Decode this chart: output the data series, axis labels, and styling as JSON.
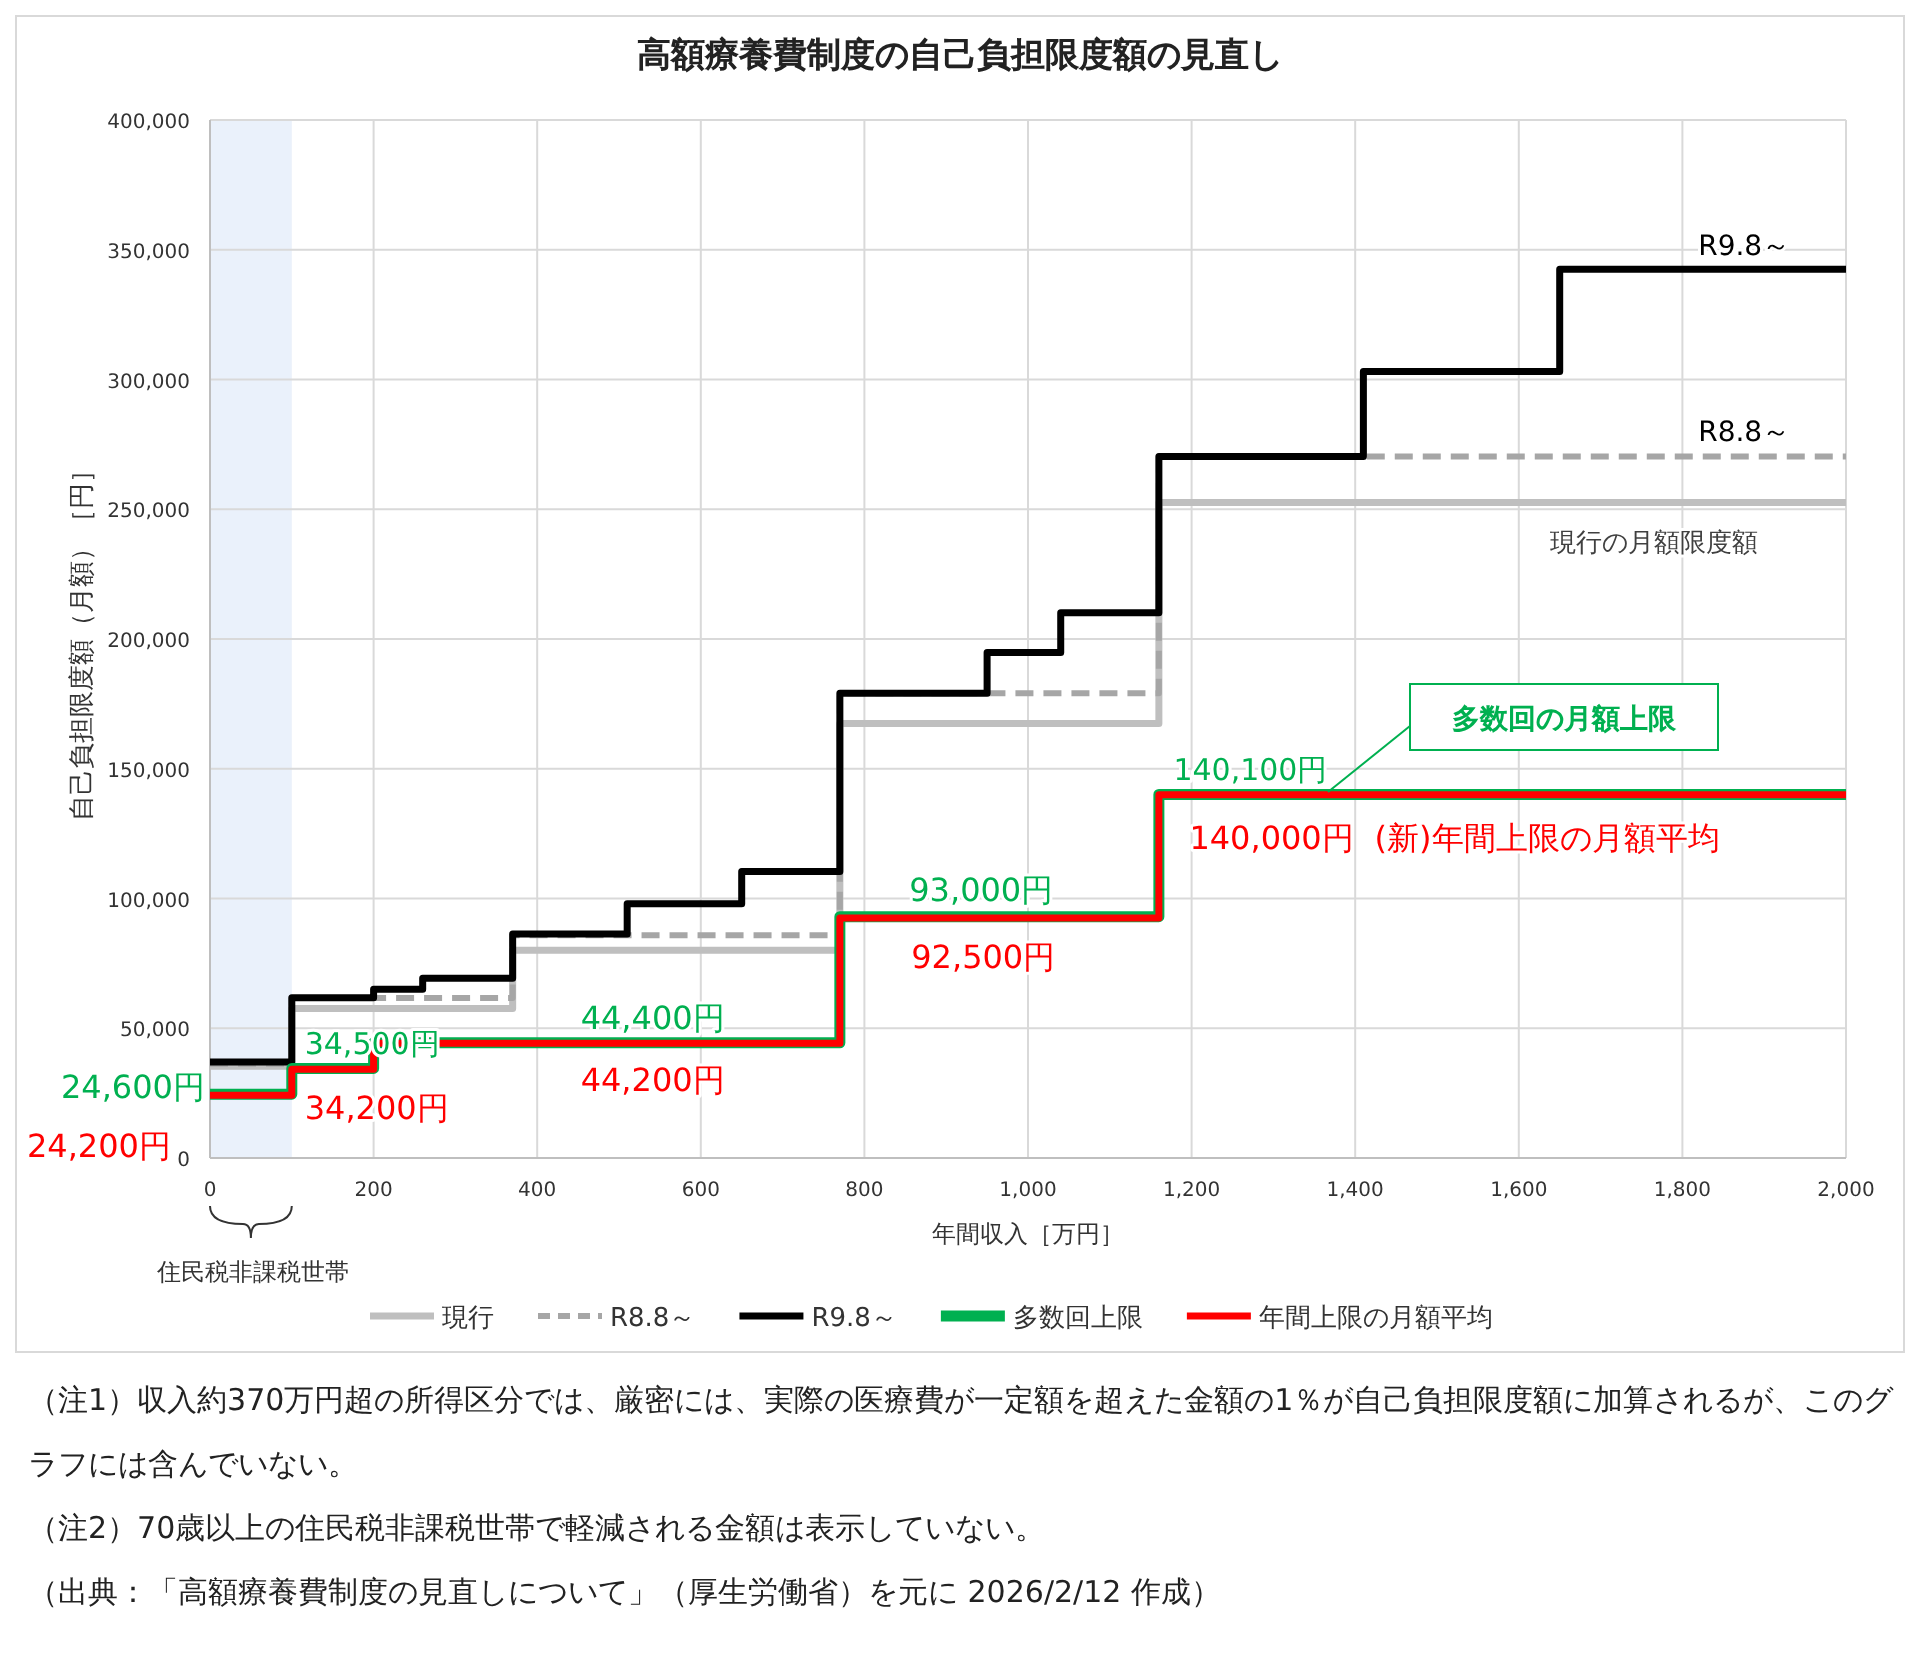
{
  "chart_data": {
    "type": "step",
    "title": "高額療養費制度の自己負担限度額の見直し",
    "xlabel": "年間収入［万円］",
    "ylabel": "自己負担限度額（月額）［円］",
    "xlim": [
      0,
      2000
    ],
    "ylim": [
      0,
      400000
    ],
    "xticks": [
      0,
      200,
      400,
      600,
      800,
      {
        "value": 1000,
        "label": "1,000"
      },
      {
        "value": 1200,
        "label": "1,200"
      },
      {
        "value": 1400,
        "label": "1,400"
      },
      {
        "value": 1600,
        "label": "1,600"
      },
      {
        "value": 1800,
        "label": "1,800"
      },
      {
        "value": 2000,
        "label": "2,000"
      }
    ],
    "yticks": [
      0,
      {
        "value": 50000,
        "label": "50,000"
      },
      {
        "value": 100000,
        "label": "100,000"
      },
      {
        "value": 150000,
        "label": "150,000"
      },
      {
        "value": 200000,
        "label": "200,000"
      },
      {
        "value": 250000,
        "label": "250,000"
      },
      {
        "value": 300000,
        "label": "300,000"
      },
      {
        "value": 350000,
        "label": "350,000"
      },
      {
        "value": 400000,
        "label": "400,000"
      }
    ],
    "grid": true,
    "legend": "bottom",
    "series": [
      {
        "name": "現行",
        "color": "#bfbfbf",
        "line_style": "solid",
        "x": [
          0,
          100,
          370,
          770,
          1160,
          2000
        ],
        "values": [
          35400,
          57600,
          80100,
          167400,
          252600,
          252600
        ]
      },
      {
        "name": "R8.8～",
        "color": "#a6a6a6",
        "line_style": "dashed",
        "x": [
          0,
          100,
          370,
          770,
          1160,
          2000
        ],
        "values": [
          36300,
          61700,
          85800,
          179100,
          270300,
          270300
        ]
      },
      {
        "name": "R9.8～",
        "color": "#000000",
        "line_style": "solid",
        "x": [
          0,
          100,
          200,
          260,
          370,
          510,
          650,
          770,
          950,
          1040,
          1160,
          1410,
          1650,
          2000
        ],
        "values": [
          37000,
          61800,
          65000,
          69300,
          86300,
          98000,
          110400,
          179100,
          194800,
          210100,
          270300,
          303100,
          342500,
          342500
        ]
      },
      {
        "name": "多数回上限",
        "color": "#00b050",
        "line_style": "solid",
        "x": [
          0,
          100,
          200,
          770,
          1160,
          2000
        ],
        "values": [
          24600,
          34500,
          44400,
          93000,
          140100,
          140100
        ]
      },
      {
        "name": "年間上限の月額平均",
        "color": "#ff0000",
        "line_style": "solid",
        "x": [
          0,
          100,
          200,
          770,
          1160,
          2000
        ],
        "values": [
          24200,
          34200,
          44200,
          92500,
          140000,
          140000
        ]
      }
    ],
    "bands": [
      {
        "axis": "x",
        "from": 0,
        "to": 100,
        "color": "#eaf1fb"
      }
    ],
    "annotations": [
      {
        "text": "24,600円",
        "x": 50,
        "y": 24600
      },
      {
        "text": "24,200円",
        "x": 50,
        "y": 24200
      },
      {
        "text": "34,500円",
        "x": 150,
        "y": 34500
      },
      {
        "text": "34,200円",
        "x": 150,
        "y": 34200
      },
      {
        "text": "44,400円",
        "x": 480,
        "y": 44400
      },
      {
        "text": "44,200円",
        "x": 480,
        "y": 44200
      },
      {
        "text": "93,000円",
        "x": 960,
        "y": 93000
      },
      {
        "text": "92,500円",
        "x": 960,
        "y": 92500
      },
      {
        "text": "140,100円",
        "x": 1300,
        "y": 140100
      },
      {
        "text": "140,000円",
        "x": 1300,
        "y": 140000
      },
      {
        "text": "(新)年間上限の月額平均",
        "x": 1700,
        "y": 140000
      },
      "多数回の月額上限",
      {
        "text": "R9.8～",
        "x": 1900,
        "y": 342500
      },
      {
        "text": "R8.8～",
        "x": 1900,
        "y": 270300
      },
      {
        "text": "現行の月額限度額",
        "x": 1900,
        "y": 252600
      },
      "住民税非課税世帯",
      "（注1）収入約370万円超の所得区分では、厳密には、実際の医療費が一定額を超えた金額の1％が自己負担限度額に加算されるが、このグラフには含んでいない。",
      "（注2）70歳以上の住民税非課税世帯で軽減される金額は表示していない。",
      "（出典：「高額療養費制度の見直しについて」（厚生労働省）を元に 2026/2/12 作成）"
    ]
  }
}
